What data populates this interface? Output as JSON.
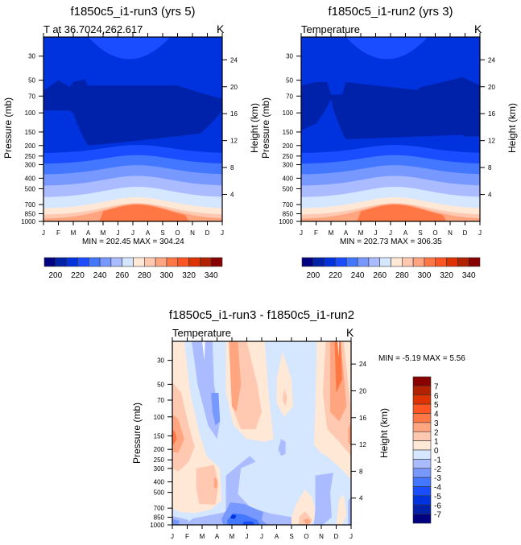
{
  "palette": {
    "blue_red_16": [
      "#000080",
      "#0022aa",
      "#0033dd",
      "#1a4dff",
      "#4477ff",
      "#7799ff",
      "#aabbff",
      "#d5e6ff",
      "#ffe8d6",
      "#ffc8b0",
      "#ffa580",
      "#ff7744",
      "#ff5522",
      "#dd3300",
      "#b22200",
      "#880000"
    ]
  },
  "chart_data": [
    {
      "type": "heatmap",
      "id": "panel-run3",
      "title": "f1850c5_i1-run3 (yrs 5)",
      "left_string": "T at 36.7024,262.617",
      "right_string": "K",
      "xlabel": "",
      "ylabel": "Pressure (mb)",
      "ylabel_right": "Height (km)",
      "x_ticks": [
        "J",
        "F",
        "M",
        "A",
        "M",
        "J",
        "J",
        "A",
        "S",
        "O",
        "N",
        "D",
        "J"
      ],
      "y_ticks": [
        30,
        50,
        70,
        100,
        150,
        200,
        250,
        300,
        400,
        500,
        700,
        850,
        1000
      ],
      "y_range": [
        1000,
        20
      ],
      "y_right_ticks": [
        4,
        8,
        12,
        16,
        20,
        24
      ],
      "min_max_text": "MIN = 202.45 MAX = 304.24",
      "min": 202.45,
      "max": 304.24,
      "colorbar": {
        "orientation": "horizontal",
        "levels": [
          190,
          200,
          210,
          220,
          230,
          240,
          250,
          260,
          270,
          280,
          290,
          300,
          310,
          320,
          330,
          340,
          350
        ],
        "labels": [
          200,
          220,
          240,
          260,
          280,
          300,
          320,
          340
        ]
      },
      "bands_top_to_bottom": [
        {
          "level_index": 2,
          "from_pressure": 20,
          "to_pressure": 32
        },
        {
          "level_index": 1,
          "from_pressure": 55,
          "to_pressure": 200
        },
        {
          "level_index": 2,
          "from_pressure": 200,
          "to_pressure": 240
        },
        {
          "level_index": 3,
          "from_pressure": 240,
          "to_pressure": 300
        },
        {
          "level_index": 4,
          "from_pressure": 300,
          "to_pressure": 380
        },
        {
          "level_index": 5,
          "from_pressure": 380,
          "to_pressure": 500
        },
        {
          "level_index": 6,
          "from_pressure": 500,
          "to_pressure": 640
        },
        {
          "level_index": 7,
          "from_pressure": 640,
          "to_pressure": 800
        },
        {
          "level_index": 8,
          "from_pressure": 800,
          "to_pressure": 900
        },
        {
          "level_index": 9,
          "from_pressure": 900,
          "to_pressure": 960
        },
        {
          "level_index": 10,
          "from_pressure": 960,
          "to_pressure": 1000
        }
      ]
    },
    {
      "type": "heatmap",
      "id": "panel-run2",
      "title": "f1850c5_i1-run2 (yrs 3)",
      "left_string": "Temperature",
      "right_string": "K",
      "xlabel": "",
      "ylabel": "Pressure (mb)",
      "ylabel_right": "Height (km)",
      "x_ticks": [
        "J",
        "F",
        "M",
        "A",
        "M",
        "J",
        "J",
        "A",
        "S",
        "O",
        "N",
        "D",
        "J"
      ],
      "y_ticks": [
        30,
        50,
        70,
        100,
        150,
        200,
        250,
        300,
        400,
        500,
        700,
        850,
        1000
      ],
      "y_range": [
        1000,
        20
      ],
      "y_right_ticks": [
        4,
        8,
        12,
        16,
        20,
        24
      ],
      "min_max_text": "MIN = 202.73 MAX = 306.35",
      "min": 202.73,
      "max": 306.35,
      "colorbar": {
        "orientation": "horizontal",
        "levels": [
          190,
          200,
          210,
          220,
          230,
          240,
          250,
          260,
          270,
          280,
          290,
          300,
          310,
          320,
          330,
          340,
          350
        ],
        "labels": [
          200,
          220,
          240,
          260,
          280,
          300,
          320,
          340
        ]
      }
    },
    {
      "type": "heatmap",
      "id": "panel-diff",
      "title": "f1850c5_i1-run3 - f1850c5_i1-run2",
      "left_string": "Temperature",
      "right_string": "K",
      "xlabel": "",
      "ylabel": "Pressure (mb)",
      "ylabel_right": "Height (km)",
      "x_ticks": [
        "J",
        "F",
        "M",
        "A",
        "M",
        "J",
        "J",
        "A",
        "S",
        "O",
        "N",
        "D",
        "J"
      ],
      "y_ticks": [
        30,
        50,
        70,
        100,
        150,
        200,
        250,
        300,
        400,
        500,
        700,
        850,
        1000
      ],
      "y_range": [
        1000,
        20
      ],
      "y_right_ticks": [
        4,
        8,
        12,
        16,
        20,
        24
      ],
      "min_max_text": "MIN =  -5.19 MAX =   5.56",
      "min": -5.19,
      "max": 5.56,
      "colorbar": {
        "orientation": "vertical",
        "levels": [
          -8,
          -7,
          -6,
          -5,
          -4,
          -3,
          -2,
          -1,
          0,
          1,
          2,
          3,
          4,
          5,
          6,
          7,
          8
        ],
        "labels": [
          7,
          6,
          5,
          4,
          3,
          2,
          1,
          0,
          -1,
          -2,
          -3,
          -4,
          -5,
          -6,
          -7
        ]
      }
    }
  ]
}
